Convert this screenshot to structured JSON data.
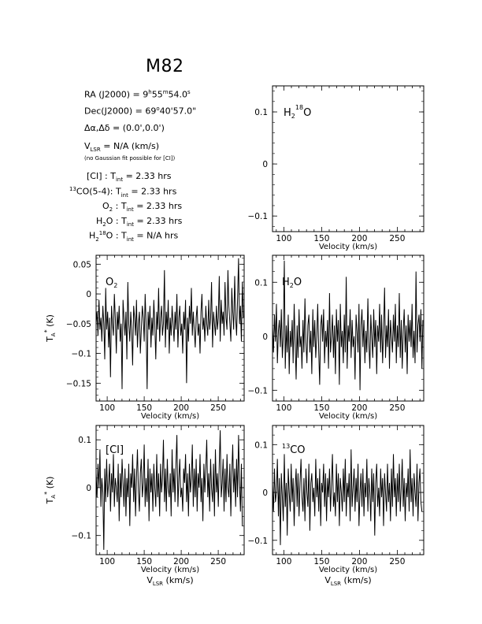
{
  "title": "M82",
  "header": {
    "ra": {
      "label": "RA (J2000)",
      "eq": "=",
      "h": "9",
      "hsup": "h",
      "m": "55",
      "msup": "m",
      "s": "54.0",
      "ssup": "s"
    },
    "dec": {
      "label": "Dec(J2000)",
      "eq": "=",
      "deg": "69",
      "degsup": "o",
      "rest": "40'57.0\""
    },
    "offset": {
      "label": "Δα,Δδ",
      "eq": "=",
      "value": "(0.0',0.0')"
    },
    "vlsr": {
      "label": "V",
      "sub": "LSR",
      "eq": "= N/A  (km/s)"
    },
    "note": "(no Gaussian fit possible for [CI])",
    "tint": [
      {
        "prefix": "",
        "sup": "",
        "label": "[CI] : T",
        "sub": "int",
        "value": "= 2.33 hrs"
      },
      {
        "prefix": "13",
        "sup": "",
        "label": "CO(5-4): T",
        "sub": "int",
        "value": "= 2.33 hrs"
      },
      {
        "prefix": "",
        "sup": "",
        "label": "O",
        "sub2": "2",
        "label2": " : T",
        "sub": "int",
        "value": "= 2.33 hrs"
      },
      {
        "prefix": "",
        "sup": "",
        "label": "H",
        "sub2": "2",
        "label2": "O : T",
        "sub": "int",
        "value": "= 2.33 hrs"
      },
      {
        "prefix": "",
        "sup": "18",
        "label": "H",
        "sub2": "2",
        "label2": "O : T",
        "sub": "int",
        "value": "= N/A hrs"
      }
    ]
  },
  "chart_data": [
    {
      "id": "h218o",
      "type": "line",
      "label_main": "H",
      "label_sub": "2",
      "label_sup": "18",
      "label_end": "O",
      "xlabel": "Velocity (km/s)",
      "ylabel": "",
      "xlim": [
        85,
        285
      ],
      "ylim": [
        -0.13,
        0.15
      ],
      "xticks": [
        100,
        150,
        200,
        250
      ],
      "yticks": [
        -0.1,
        0,
        0.1
      ],
      "ytick_labels": [
        "−0.1",
        "0",
        "0.1"
      ],
      "x_start": 85,
      "x_step": 1.3,
      "values": []
    },
    {
      "id": "o2",
      "type": "line",
      "label_main": "O",
      "label_sub": "2",
      "label_sup": "",
      "label_end": "",
      "xlabel": "Velocity (km/s)",
      "ylabel": "T_A* (K)",
      "xlim": [
        85,
        285
      ],
      "ylim": [
        -0.18,
        0.065
      ],
      "xticks": [
        100,
        150,
        200,
        250
      ],
      "yticks": [
        -0.15,
        -0.1,
        -0.05,
        0,
        0.05
      ],
      "ytick_labels": [
        "−0.15",
        "−0.1",
        "−0.05",
        "0",
        "0.05"
      ],
      "x_start": 85,
      "x_step": 1.3,
      "values": [
        -0.05,
        -0.03,
        -0.07,
        -0.01,
        -0.06,
        -0.04,
        -0.08,
        -0.02,
        -0.05,
        -0.11,
        0.01,
        -0.06,
        -0.03,
        -0.09,
        -0.04,
        -0.14,
        -0.02,
        -0.05,
        -0.07,
        0.0,
        -0.04,
        -0.1,
        -0.03,
        -0.06,
        -0.02,
        -0.08,
        -0.05,
        -0.16,
        -0.01,
        -0.04,
        -0.07,
        -0.03,
        -0.11,
        0.02,
        -0.05,
        -0.08,
        -0.03,
        -0.06,
        -0.12,
        -0.02,
        -0.04,
        -0.07,
        -0.01,
        -0.09,
        -0.05,
        -0.03,
        -0.1,
        -0.06,
        -0.02,
        -0.04,
        -0.08,
        0.0,
        -0.05,
        -0.16,
        -0.03,
        -0.06,
        -0.02,
        -0.09,
        -0.04,
        -0.07,
        -0.01,
        -0.05,
        -0.11,
        -0.03,
        -0.06,
        0.01,
        -0.08,
        -0.04,
        -0.02,
        -0.07,
        -0.05,
        0.04,
        -0.09,
        -0.03,
        -0.06,
        -0.01,
        -0.1,
        -0.04,
        -0.07,
        -0.02,
        -0.05,
        -0.08,
        -0.03,
        -0.06,
        0.0,
        -0.09,
        -0.04,
        -0.02,
        -0.07,
        -0.05,
        -0.1,
        -0.03,
        -0.06,
        -0.01,
        -0.15,
        -0.04,
        -0.08,
        -0.02,
        -0.05,
        0.01,
        -0.07,
        -0.03,
        -0.06,
        -0.09,
        -0.04,
        -0.02,
        -0.07,
        -0.05,
        -0.1,
        -0.03,
        0.0,
        -0.06,
        -0.04,
        -0.08,
        -0.02,
        -0.05,
        -0.07,
        -0.01,
        -0.06,
        -0.04,
        0.02,
        -0.09,
        -0.03,
        -0.05,
        -0.07,
        -0.02,
        -0.06,
        -0.04,
        0.03,
        -0.08,
        -0.01,
        -0.05,
        -0.03,
        -0.07,
        0.02,
        -0.04,
        -0.06,
        0.04,
        -0.02,
        -0.05,
        -0.08,
        0.01,
        -0.03,
        -0.06,
        0.03,
        -0.04,
        -0.07,
        -0.01,
        0.06,
        -0.05,
        -0.02,
        -0.08,
        0.02,
        -0.04,
        -0.06,
        0.05,
        -0.03
      ]
    },
    {
      "id": "h2o",
      "type": "line",
      "label_main": "H",
      "label_sub": "2",
      "label_sup": "",
      "label_end": "O",
      "xlabel": "Velocity (km/s)",
      "ylabel": "",
      "xlim": [
        85,
        285
      ],
      "ylim": [
        -0.12,
        0.15
      ],
      "xticks": [
        100,
        150,
        200,
        250
      ],
      "yticks": [
        -0.1,
        0,
        0.1
      ],
      "ytick_labels": [
        "−0.1",
        "0",
        "0.1"
      ],
      "x_start": 85,
      "x_step": 1.3,
      "values": [
        0.02,
        -0.03,
        0.04,
        -0.01,
        0.06,
        -0.05,
        0.01,
        0.03,
        -0.02,
        0.05,
        -0.04,
        0.0,
        0.14,
        -0.06,
        0.02,
        -0.03,
        0.04,
        -0.07,
        0.01,
        -0.02,
        0.03,
        -0.05,
        0.06,
        -0.01,
        -0.08,
        0.02,
        -0.04,
        0.05,
        -0.02,
        0.0,
        -0.06,
        0.03,
        -0.03,
        0.07,
        -0.01,
        -0.05,
        0.02,
        0.04,
        -0.03,
        0.01,
        -0.07,
        0.05,
        -0.02,
        0.03,
        -0.04,
        0.0,
        0.06,
        -0.03,
        -0.09,
        0.02,
        0.04,
        -0.01,
        0.05,
        -0.05,
        0.01,
        -0.02,
        0.03,
        -0.06,
        0.08,
        -0.03,
        0.0,
        0.04,
        -0.04,
        0.02,
        -0.07,
        0.05,
        -0.01,
        0.03,
        -0.09,
        0.06,
        -0.02,
        0.01,
        -0.05,
        0.04,
        -0.03,
        0.11,
        -0.06,
        0.02,
        -0.01,
        0.05,
        -0.04,
        0.03,
        -0.02,
        0.0,
        -0.08,
        0.04,
        0.01,
        -0.03,
        0.06,
        -0.1,
        0.02,
        0.05,
        -0.02,
        0.03,
        -0.05,
        0.01,
        -0.03,
        0.07,
        -0.01,
        -0.06,
        0.04,
        0.0,
        -0.04,
        0.05,
        -0.02,
        0.03,
        -0.07,
        0.02,
        -0.01,
        0.06,
        -0.03,
        0.04,
        -0.05,
        0.01,
        0.09,
        -0.04,
        0.02,
        -0.02,
        0.05,
        -0.06,
        0.03,
        0.0,
        -0.03,
        0.04,
        -0.01,
        0.06,
        -0.05,
        0.02,
        -0.02,
        0.08,
        -0.04,
        0.03,
        -0.06,
        0.01,
        0.05,
        -0.03,
        0.02,
        -0.07,
        0.04,
        -0.01,
        0.03,
        -0.02,
        0.06,
        -0.04,
        0.01,
        -0.05,
        0.12,
        -0.03,
        0.02,
        0.04,
        -0.01,
        0.05,
        -0.06,
        0.03,
        -0.02
      ]
    },
    {
      "id": "ci",
      "type": "line",
      "label_main": "[CI]",
      "label_sub": "",
      "label_sup": "",
      "label_end": "",
      "xlabel": "Velocity (km/s)",
      "xlabel2_main": "V",
      "xlabel2_sub": "LSR",
      "xlabel2_end": " (km/s)",
      "ylabel": "T_A* (K)",
      "xlim": [
        85,
        285
      ],
      "ylim": [
        -0.14,
        0.13
      ],
      "xticks": [
        100,
        150,
        200,
        250
      ],
      "yticks": [
        -0.1,
        0,
        0.1
      ],
      "ytick_labels": [
        "−0.1",
        "0",
        "0.1"
      ],
      "x_start": 85,
      "x_step": 1.3,
      "values": [
        0.03,
        -0.02,
        0.05,
        0.0,
        0.08,
        -0.04,
        0.02,
        -0.01,
        -0.13,
        0.04,
        -0.03,
        0.06,
        -0.02,
        0.01,
        0.05,
        -0.05,
        0.03,
        -0.01,
        0.07,
        -0.04,
        0.02,
        0.0,
        -0.03,
        0.05,
        -0.07,
        0.03,
        -0.02,
        0.06,
        0.01,
        -0.04,
        0.04,
        -0.06,
        0.02,
        -0.02,
        0.05,
        -0.08,
        0.03,
        0.0,
        0.07,
        -0.03,
        0.04,
        -0.06,
        0.02,
        0.08,
        -0.01,
        -0.05,
        0.03,
        0.06,
        -0.02,
        0.01,
        0.09,
        -0.04,
        0.02,
        -0.03,
        0.06,
        -0.07,
        0.04,
        -0.01,
        0.03,
        -0.05,
        0.05,
        0.0,
        -0.04,
        0.07,
        -0.02,
        0.03,
        -0.06,
        0.05,
        -0.01,
        0.02,
        0.1,
        -0.03,
        0.04,
        -0.05,
        0.06,
        0.0,
        -0.02,
        0.03,
        -0.06,
        0.08,
        -0.01,
        0.04,
        -0.03,
        0.05,
        0.11,
        -0.04,
        0.02,
        0.06,
        -0.02,
        0.0,
        -0.05,
        0.04,
        0.01,
        0.07,
        -0.03,
        0.03,
        -0.06,
        0.05,
        -0.01,
        0.02,
        0.09,
        -0.04,
        0.04,
        -0.02,
        0.06,
        -0.05,
        0.03,
        0.0,
        0.07,
        -0.03,
        0.02,
        -0.07,
        0.05,
        -0.01,
        0.04,
        0.1,
        -0.02,
        0.03,
        -0.05,
        0.06,
        0.0,
        -0.03,
        0.05,
        -0.06,
        0.08,
        -0.01,
        0.03,
        -0.04,
        0.05,
        0.12,
        -0.02,
        0.01,
        0.06,
        -0.05,
        0.04,
        -0.03,
        0.07,
        0.0,
        -0.02,
        0.05,
        -0.06,
        0.03,
        0.09,
        -0.01,
        0.04,
        -0.04,
        0.06,
        -0.02,
        0.11,
        0.01,
        -0.05,
        0.05,
        -0.08
      ]
    },
    {
      "id": "13co",
      "type": "line",
      "label_main": "CO",
      "label_sub": "",
      "label_sup": "13",
      "label_end": "",
      "xlabel": "Velocity (km/s)",
      "xlabel2_main": "V",
      "xlabel2_sub": "LSR",
      "xlabel2_end": " (km/s)",
      "ylabel": "",
      "xlim": [
        85,
        285
      ],
      "ylim": [
        -0.13,
        0.14
      ],
      "xticks": [
        100,
        150,
        200,
        250
      ],
      "yticks": [
        -0.1,
        0,
        0.1
      ],
      "ytick_labels": [
        "−0.1",
        "0",
        "0.1"
      ],
      "x_start": 85,
      "x_step": 1.3,
      "values": [
        0.02,
        -0.04,
        0.05,
        -0.02,
        0.0,
        0.07,
        -0.05,
        0.03,
        -0.11,
        0.04,
        -0.01,
        -0.06,
        0.08,
        -0.03,
        0.02,
        -0.09,
        0.05,
        0.0,
        -0.04,
        0.06,
        -0.02,
        0.03,
        -0.07,
        0.01,
        0.05,
        -0.03,
        0.04,
        -0.05,
        0.02,
        0.07,
        -0.01,
        -0.04,
        0.03,
        -0.06,
        0.05,
        0.0,
        -0.03,
        0.06,
        -0.08,
        0.02,
        0.04,
        -0.02,
        0.01,
        -0.05,
        0.07,
        -0.01,
        0.03,
        -0.04,
        0.05,
        -0.07,
        0.02,
        0.0,
        0.06,
        -0.03,
        0.04,
        -0.06,
        0.03,
        -0.01,
        0.05,
        -0.04,
        0.02,
        0.08,
        -0.03,
        0.0,
        -0.05,
        0.06,
        -0.02,
        0.04,
        -0.07,
        0.03,
        0.0,
        -0.04,
        0.05,
        -0.02,
        0.07,
        -0.05,
        0.02,
        -0.01,
        0.04,
        -0.06,
        0.09,
        -0.03,
        0.01,
        0.05,
        -0.04,
        0.03,
        -0.02,
        0.06,
        -0.07,
        0.0,
        0.04,
        -0.03,
        0.05,
        -0.05,
        0.02,
        -0.01,
        0.07,
        -0.04,
        0.03,
        0.0,
        -0.06,
        0.05,
        -0.02,
        0.04,
        -0.09,
        0.02,
        0.06,
        -0.03,
        0.01,
        -0.05,
        0.05,
        -0.01,
        0.03,
        -0.07,
        0.04,
        0.0,
        -0.04,
        0.06,
        -0.02,
        0.02,
        -0.06,
        0.05,
        -0.03,
        0.08,
        -0.01,
        0.03,
        -0.05,
        0.04,
        -0.02,
        0.06,
        -0.04,
        0.01,
        0.07,
        -0.03,
        0.03,
        -0.06,
        0.02,
        -0.01,
        0.05,
        -0.04,
        0.09,
        -0.02,
        0.03,
        -0.05,
        0.04,
        0.0,
        -0.03,
        0.06,
        -0.06,
        0.02,
        0.05,
        -0.02,
        -0.04
      ]
    }
  ]
}
